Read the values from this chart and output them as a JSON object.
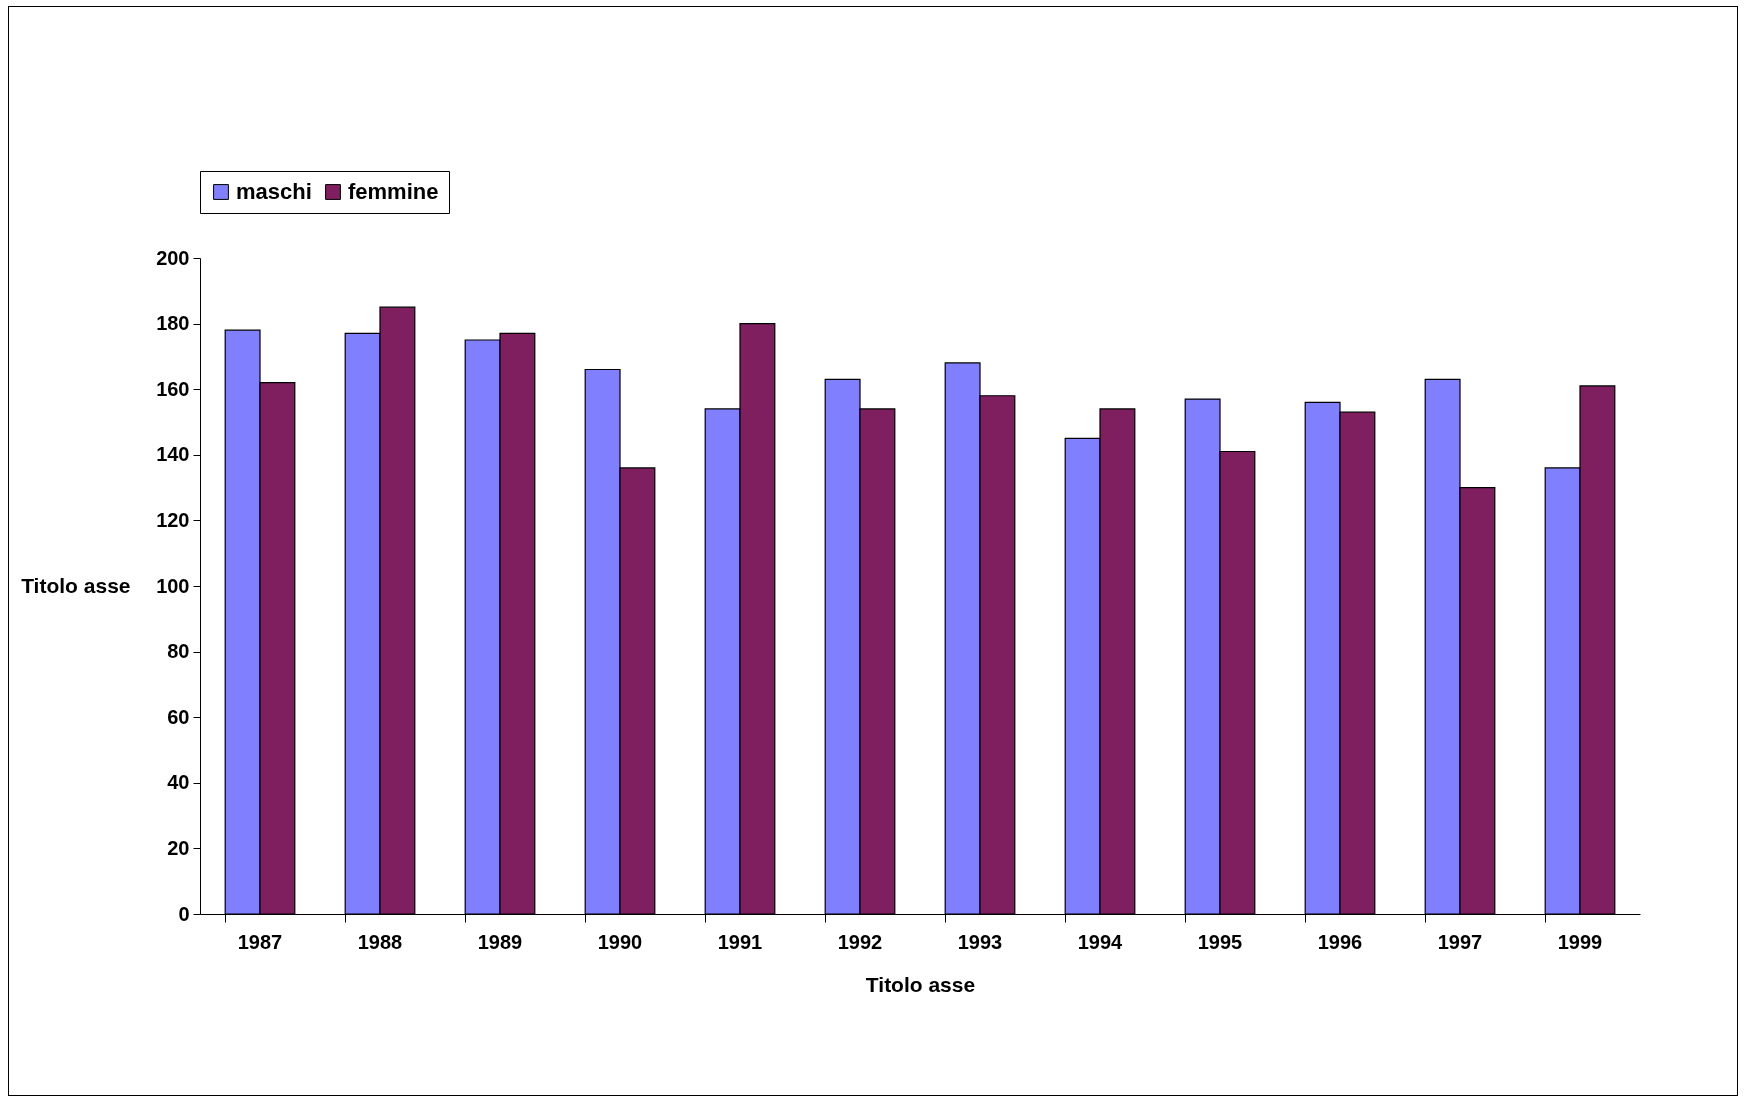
{
  "chart_data": {
    "type": "bar",
    "xlabel": "Titolo asse",
    "ylabel": "Titolo asse",
    "categories": [
      "1987",
      "1988",
      "1989",
      "1990",
      "1991",
      "1992",
      "1993",
      "1994",
      "1995",
      "1996",
      "1997",
      "1999"
    ],
    "series": [
      {
        "name": "maschi",
        "color": "#8080ff",
        "values": [
          178,
          177,
          175,
          166,
          154,
          163,
          168,
          145,
          157,
          156,
          163,
          136
        ]
      },
      {
        "name": "femmine",
        "color": "#7f1f5f",
        "values": [
          162,
          185,
          177,
          136,
          180,
          154,
          158,
          154,
          141,
          153,
          130,
          161
        ]
      }
    ],
    "ylim": [
      0,
      200
    ],
    "yticks": [
      0,
      20,
      40,
      60,
      80,
      100,
      120,
      140,
      160,
      180,
      200
    ],
    "legend": "top"
  }
}
